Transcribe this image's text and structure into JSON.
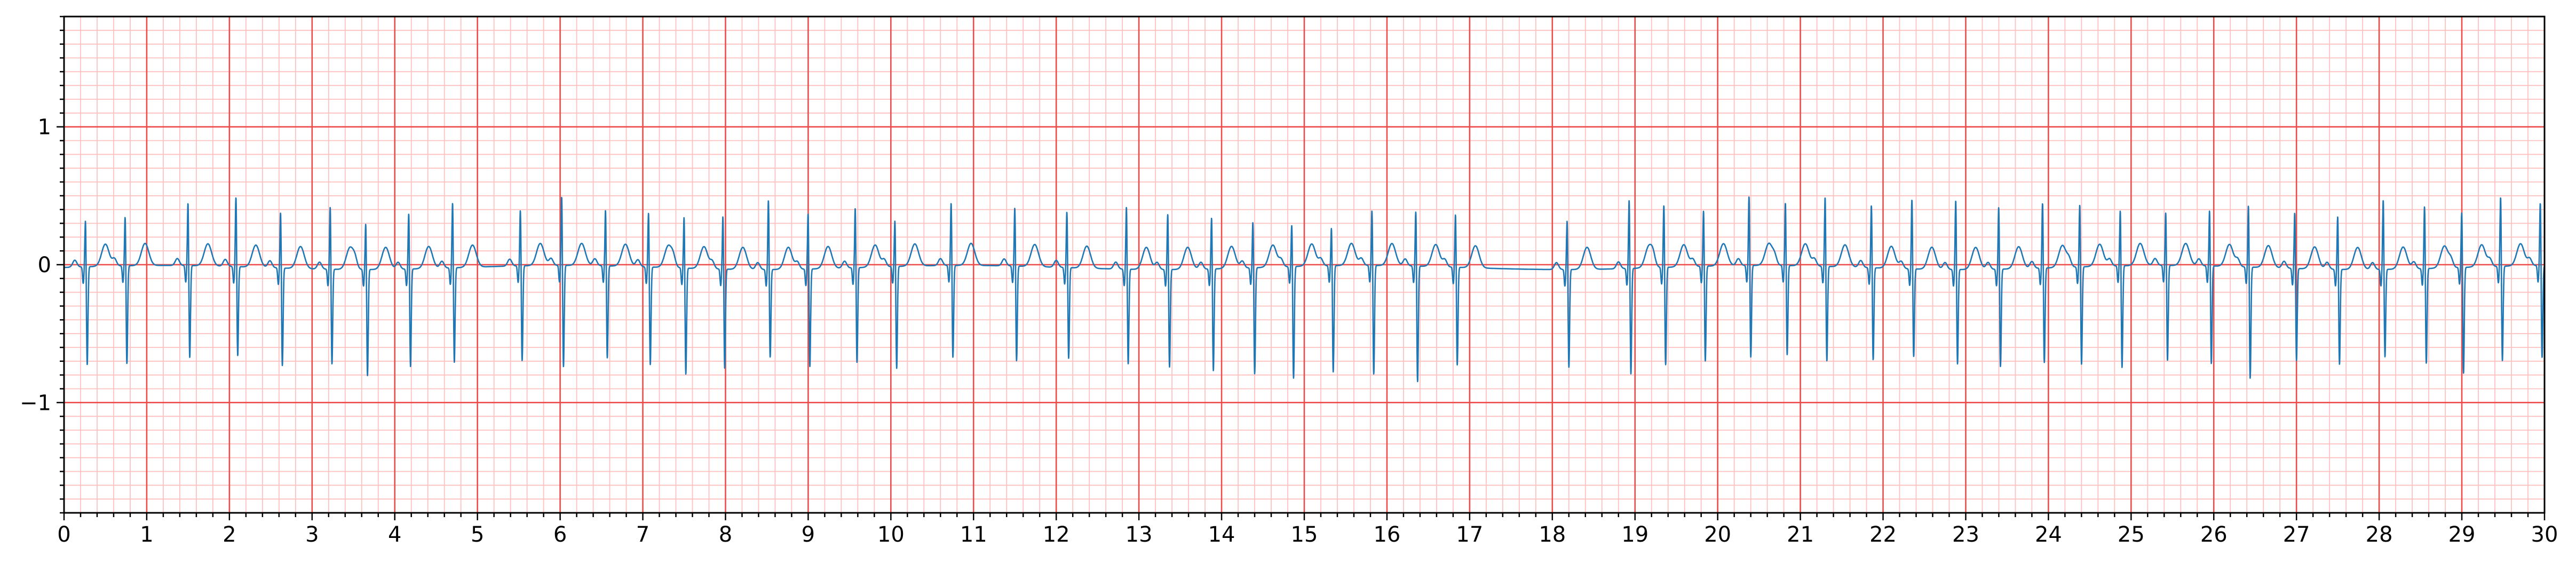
{
  "chart_data": {
    "type": "line",
    "title": "",
    "xlabel": "",
    "ylabel": "",
    "xlim": [
      0,
      30
    ],
    "ylim": [
      -1.8,
      1.8
    ],
    "grid": "ECG paper grid (major 1 s / 1 mV, minor 0.2 s / 0.1 mV)",
    "x_ticks": [
      "0",
      "1",
      "2",
      "3",
      "4",
      "5",
      "6",
      "7",
      "8",
      "9",
      "10",
      "11",
      "12",
      "13",
      "14",
      "15",
      "16",
      "17",
      "18",
      "19",
      "20",
      "21",
      "22",
      "23",
      "24",
      "25",
      "26",
      "27",
      "28",
      "29",
      "30"
    ],
    "y_ticks": [
      {
        "value": 1,
        "label": "1"
      },
      {
        "value": 0,
        "label": "0"
      },
      {
        "value": -1,
        "label": "−1"
      }
    ],
    "series": [
      {
        "color": "#1f77b4",
        "beat_times_s": [
          0.26,
          0.74,
          1.5,
          2.08,
          2.62,
          3.22,
          3.65,
          4.17,
          4.7,
          5.52,
          6.02,
          6.55,
          7.07,
          7.5,
          7.97,
          8.52,
          9.0,
          9.57,
          10.05,
          10.73,
          11.5,
          12.13,
          12.85,
          13.35,
          13.88,
          14.38,
          14.85,
          15.33,
          15.82,
          16.35,
          16.83,
          18.18,
          18.93,
          19.35,
          19.83,
          20.38,
          20.82,
          21.3,
          21.86,
          22.35,
          22.88,
          23.4,
          23.93,
          24.38,
          24.87,
          25.42,
          25.95,
          26.42,
          26.98,
          27.5,
          28.05,
          28.55,
          29.0,
          29.47,
          29.95
        ],
        "r_peak_mV": [
          0.38,
          0.4,
          0.5,
          0.55,
          0.45,
          0.5,
          0.38,
          0.45,
          0.52,
          0.45,
          0.55,
          0.45,
          0.44,
          0.42,
          0.43,
          0.55,
          0.45,
          0.48,
          0.38,
          0.5,
          0.47,
          0.45,
          0.5,
          0.45,
          0.42,
          0.38,
          0.35,
          0.32,
          0.45,
          0.45,
          0.43,
          0.4,
          0.55,
          0.5,
          0.45,
          0.55,
          0.5,
          0.55,
          0.5,
          0.55,
          0.55,
          0.5,
          0.52,
          0.5,
          0.45,
          0.43,
          0.45,
          0.5,
          0.45,
          0.43,
          0.55,
          0.5,
          0.45,
          0.55,
          0.5
        ],
        "s_trough_mV": [
          -0.72,
          -0.72,
          -0.68,
          -0.66,
          -0.72,
          -0.7,
          -0.78,
          -0.72,
          -0.7,
          -0.7,
          -0.75,
          -0.68,
          -0.72,
          -0.78,
          -0.73,
          -0.65,
          -0.72,
          -0.7,
          -0.75,
          -0.68,
          -0.7,
          -0.67,
          -0.7,
          -0.72,
          -0.75,
          -0.78,
          -0.82,
          -0.78,
          -0.8,
          -0.85,
          -0.72,
          -0.72,
          -0.78,
          -0.72,
          -0.7,
          -0.68,
          -0.66,
          -0.7,
          -0.68,
          -0.65,
          -0.7,
          -0.72,
          -0.7,
          -0.72,
          -0.75,
          -0.7,
          -0.72,
          -0.82,
          -0.68,
          -0.7,
          -0.65,
          -0.7,
          -0.78,
          -0.7,
          -0.68
        ]
      }
    ]
  }
}
